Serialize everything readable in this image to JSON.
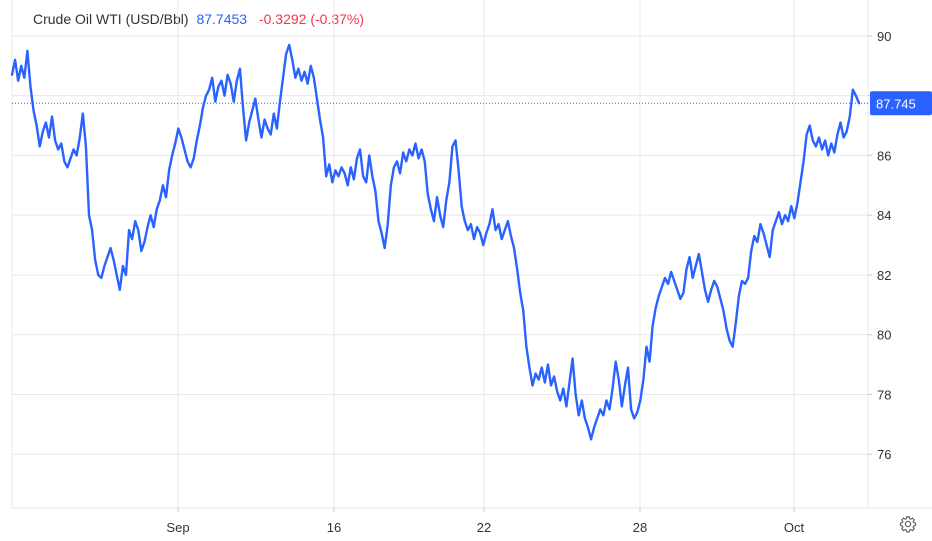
{
  "legend": {
    "name": "Crude Oil WTI (USD/Bbl)",
    "price": "87.7453",
    "change": "-0.3292 (-0.37%)"
  },
  "colors": {
    "line": "#2962ff",
    "change_negative": "#f23645",
    "grid": "#e8e8e8"
  },
  "settings_icon": "gear-icon",
  "chart_data": {
    "type": "line",
    "title": "Crude Oil WTI (USD/Bbl)",
    "xlabel": "",
    "ylabel": "",
    "x_tick_labels": [
      "Sep",
      "16",
      "22",
      "28",
      "Oct"
    ],
    "y_ticks": [
      76,
      78,
      80,
      82,
      84,
      86,
      88,
      90
    ],
    "ylim": [
      74.2,
      90.8
    ],
    "grid": true,
    "last_value_label": "87.745",
    "series": [
      {
        "values": [
          88.7,
          89.2,
          88.5,
          89.0,
          88.6,
          89.5,
          88.3,
          87.5,
          87.0,
          86.3,
          86.8,
          87.1,
          86.6,
          87.3,
          86.5,
          86.2,
          86.4,
          85.8,
          85.6,
          85.9,
          86.2,
          86.0,
          86.6,
          87.4,
          86.3,
          84.0,
          83.5,
          82.5,
          82.0,
          81.9,
          82.3,
          82.6,
          82.9,
          82.5,
          82.0,
          81.5,
          82.3,
          82.0,
          83.5,
          83.2,
          83.8,
          83.5,
          82.8,
          83.1,
          83.6,
          84.0,
          83.6,
          84.2,
          84.5,
          85.0,
          84.6,
          85.5,
          86.0,
          86.4,
          86.9,
          86.6,
          86.2,
          85.8,
          85.6,
          85.9,
          86.5,
          87.0,
          87.6,
          88.0,
          88.2,
          88.6,
          87.8,
          88.3,
          88.5,
          88.0,
          88.7,
          88.4,
          87.8,
          88.5,
          88.9,
          87.6,
          86.5,
          87.1,
          87.5,
          87.9,
          87.2,
          86.6,
          87.2,
          86.9,
          86.7,
          87.4,
          86.9,
          87.8,
          88.6,
          89.4,
          89.7,
          89.2,
          88.6,
          88.9,
          88.5,
          88.8,
          88.4,
          89.0,
          88.6,
          87.9,
          87.2,
          86.6,
          85.3,
          85.7,
          85.1,
          85.5,
          85.3,
          85.6,
          85.4,
          85.0,
          85.6,
          85.2,
          85.9,
          86.2,
          85.3,
          85.1,
          86.0,
          85.3,
          84.8,
          83.8,
          83.4,
          82.9,
          83.7,
          85.0,
          85.6,
          85.8,
          85.4,
          86.1,
          85.8,
          86.2,
          86.0,
          86.4,
          85.9,
          86.2,
          85.8,
          84.7,
          84.2,
          83.8,
          84.6,
          84.0,
          83.6,
          84.5,
          85.1,
          86.3,
          86.5,
          85.5,
          84.3,
          83.8,
          83.5,
          83.7,
          83.2,
          83.6,
          83.4,
          83.0,
          83.4,
          83.7,
          84.2,
          83.5,
          83.7,
          83.2,
          83.5,
          83.8,
          83.3,
          82.9,
          82.2,
          81.4,
          80.8,
          79.6,
          78.9,
          78.3,
          78.7,
          78.5,
          78.9,
          78.4,
          79.0,
          78.3,
          78.6,
          78.1,
          77.8,
          78.2,
          77.6,
          78.4,
          79.2,
          78.0,
          77.3,
          77.8,
          77.2,
          76.9,
          76.5,
          76.9,
          77.2,
          77.5,
          77.3,
          77.8,
          77.5,
          78.2,
          79.1,
          78.5,
          77.6,
          78.3,
          78.9,
          77.5,
          77.2,
          77.4,
          77.8,
          78.5,
          79.6,
          79.1,
          80.3,
          80.9,
          81.3,
          81.6,
          81.9,
          81.7,
          82.1,
          81.8,
          81.5,
          81.2,
          81.4,
          82.2,
          82.6,
          81.9,
          82.3,
          82.7,
          82.1,
          81.5,
          81.1,
          81.5,
          81.8,
          81.6,
          81.2,
          80.8,
          80.2,
          79.8,
          79.6,
          80.4,
          81.3,
          81.8,
          81.7,
          81.9,
          82.8,
          83.3,
          83.1,
          83.7,
          83.4,
          83.0,
          82.6,
          83.5,
          83.8,
          84.1,
          83.7,
          84.0,
          83.8,
          84.3,
          83.9,
          84.4,
          85.1,
          85.8,
          86.7,
          87.0,
          86.5,
          86.3,
          86.6,
          86.2,
          86.5,
          86.0,
          86.4,
          86.1,
          86.7,
          87.1,
          86.6,
          86.8,
          87.3,
          88.2,
          88.0,
          87.75
        ]
      }
    ]
  }
}
